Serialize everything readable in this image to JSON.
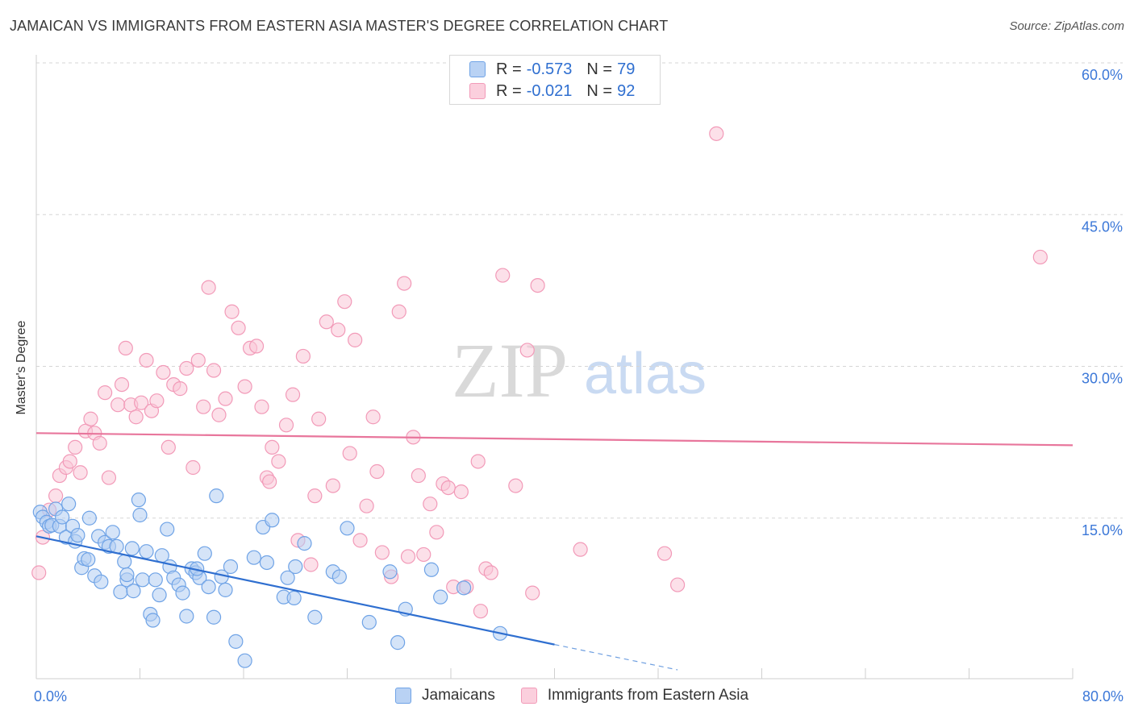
{
  "header": {
    "title": "JAMAICAN VS IMMIGRANTS FROM EASTERN ASIA MASTER'S DEGREE CORRELATION CHART",
    "source": "Source: ZipAtlas.com"
  },
  "watermark": {
    "zip": "ZIP",
    "atlas": "atlas"
  },
  "legend": {
    "r_label": "R =",
    "n_label": "N =",
    "entries": [
      {
        "r": "-0.573",
        "n": "79",
        "color": "#6fa3e6"
      },
      {
        "r": "-0.021",
        "n": "92",
        "color": "#f29ab8"
      }
    ]
  },
  "bottom_legend": {
    "items": [
      {
        "label": "Jamaicans",
        "color": "#6fa3e6"
      },
      {
        "label": "Immigrants from Eastern Asia",
        "color": "#f29ab8"
      }
    ]
  },
  "chart_data": {
    "type": "scatter",
    "title": "JAMAICAN VS IMMIGRANTS FROM EASTERN ASIA MASTER'S DEGREE CORRELATION CHART",
    "xlabel": "",
    "ylabel": "Master's Degree",
    "xlim": [
      0,
      80
    ],
    "ylim": [
      0,
      60
    ],
    "x_tick_labels": [
      "0.0%",
      "80.0%"
    ],
    "y_ticks": [
      15,
      30,
      45,
      60
    ],
    "y_tick_labels": [
      "15.0%",
      "30.0%",
      "45.0%",
      "60.0%"
    ],
    "grid": true,
    "legend_position": "top-center",
    "series": [
      {
        "name": "Jamaicans",
        "color": "#6fa3e6",
        "trend": {
          "x": [
            0,
            40
          ],
          "y": [
            13.2,
            2.5
          ],
          "dashed_to": [
            49.5,
            0
          ]
        },
        "points": [
          [
            0.3,
            15.6
          ],
          [
            0.5,
            15.1
          ],
          [
            0.8,
            14.6
          ],
          [
            1.0,
            14.2
          ],
          [
            1.5,
            15.9
          ],
          [
            1.2,
            14.3
          ],
          [
            1.8,
            14.2
          ],
          [
            2.0,
            15.1
          ],
          [
            2.3,
            13.1
          ],
          [
            2.5,
            16.4
          ],
          [
            2.8,
            14.2
          ],
          [
            3.0,
            12.7
          ],
          [
            3.2,
            13.3
          ],
          [
            3.5,
            10.1
          ],
          [
            3.7,
            11.0
          ],
          [
            4.1,
            15.0
          ],
          [
            4.0,
            10.9
          ],
          [
            4.5,
            9.3
          ],
          [
            4.8,
            13.2
          ],
          [
            5.0,
            8.7
          ],
          [
            5.3,
            12.6
          ],
          [
            5.6,
            12.2
          ],
          [
            5.9,
            13.6
          ],
          [
            6.2,
            12.2
          ],
          [
            6.5,
            7.7
          ],
          [
            6.8,
            10.7
          ],
          [
            7.0,
            8.9
          ],
          [
            7.4,
            12.0
          ],
          [
            7.5,
            7.8
          ],
          [
            7.9,
            16.8
          ],
          [
            8.0,
            15.3
          ],
          [
            8.2,
            8.9
          ],
          [
            8.5,
            11.7
          ],
          [
            8.8,
            5.5
          ],
          [
            9.0,
            4.9
          ],
          [
            9.2,
            8.9
          ],
          [
            9.5,
            7.4
          ],
          [
            9.7,
            11.3
          ],
          [
            10.1,
            13.9
          ],
          [
            10.3,
            10.2
          ],
          [
            10.6,
            9.1
          ],
          [
            11.0,
            8.4
          ],
          [
            11.3,
            7.6
          ],
          [
            11.6,
            5.3
          ],
          [
            12.0,
            10.0
          ],
          [
            12.3,
            9.6
          ],
          [
            12.6,
            9.1
          ],
          [
            13.0,
            11.5
          ],
          [
            13.3,
            8.2
          ],
          [
            13.7,
            5.2
          ],
          [
            13.9,
            17.2
          ],
          [
            14.3,
            9.2
          ],
          [
            14.6,
            7.9
          ],
          [
            15.0,
            10.2
          ],
          [
            15.4,
            2.8
          ],
          [
            16.1,
            0.9
          ],
          [
            16.8,
            11.1
          ],
          [
            17.5,
            14.1
          ],
          [
            17.8,
            10.6
          ],
          [
            18.2,
            14.8
          ],
          [
            19.1,
            7.2
          ],
          [
            19.9,
            7.1
          ],
          [
            20.7,
            12.5
          ],
          [
            21.5,
            5.2
          ],
          [
            22.9,
            9.7
          ],
          [
            23.4,
            9.2
          ],
          [
            24.0,
            14.0
          ],
          [
            25.7,
            4.7
          ],
          [
            27.3,
            9.7
          ],
          [
            27.9,
            2.7
          ],
          [
            28.5,
            6.0
          ],
          [
            30.5,
            9.9
          ],
          [
            31.2,
            7.2
          ],
          [
            33.0,
            8.1
          ],
          [
            35.8,
            3.6
          ],
          [
            19.4,
            9.1
          ],
          [
            20.0,
            10.2
          ],
          [
            12.4,
            10.0
          ],
          [
            7.0,
            9.4
          ]
        ]
      },
      {
        "name": "Immigrants from Eastern Asia",
        "color": "#f29ab8",
        "trend": {
          "x": [
            0,
            80
          ],
          "y": [
            23.4,
            22.2
          ]
        },
        "points": [
          [
            0.2,
            9.6
          ],
          [
            0.5,
            13.1
          ],
          [
            1.0,
            15.8
          ],
          [
            1.5,
            17.2
          ],
          [
            1.8,
            19.2
          ],
          [
            2.3,
            20.0
          ],
          [
            2.6,
            20.6
          ],
          [
            3.0,
            22.0
          ],
          [
            3.4,
            19.5
          ],
          [
            3.8,
            23.6
          ],
          [
            4.2,
            24.8
          ],
          [
            4.5,
            23.4
          ],
          [
            4.9,
            22.4
          ],
          [
            5.3,
            27.4
          ],
          [
            5.6,
            19.0
          ],
          [
            6.3,
            26.2
          ],
          [
            6.6,
            28.2
          ],
          [
            6.9,
            31.8
          ],
          [
            7.3,
            26.2
          ],
          [
            7.7,
            25.0
          ],
          [
            8.1,
            26.4
          ],
          [
            8.5,
            30.6
          ],
          [
            8.9,
            25.6
          ],
          [
            9.3,
            26.6
          ],
          [
            9.8,
            29.4
          ],
          [
            10.2,
            22.0
          ],
          [
            10.6,
            28.2
          ],
          [
            11.1,
            27.8
          ],
          [
            11.6,
            29.8
          ],
          [
            12.1,
            20.0
          ],
          [
            12.5,
            30.6
          ],
          [
            12.9,
            26.0
          ],
          [
            13.3,
            37.8
          ],
          [
            13.7,
            29.6
          ],
          [
            14.1,
            25.2
          ],
          [
            14.6,
            26.8
          ],
          [
            15.1,
            35.4
          ],
          [
            15.6,
            33.8
          ],
          [
            16.1,
            28.0
          ],
          [
            16.5,
            31.8
          ],
          [
            17.0,
            32.0
          ],
          [
            17.4,
            26.0
          ],
          [
            17.8,
            19.0
          ],
          [
            18.2,
            22.0
          ],
          [
            18.7,
            20.6
          ],
          [
            19.3,
            24.2
          ],
          [
            19.8,
            27.2
          ],
          [
            20.2,
            12.8
          ],
          [
            20.6,
            31.0
          ],
          [
            21.2,
            10.4
          ],
          [
            21.5,
            17.2
          ],
          [
            21.8,
            24.8
          ],
          [
            22.4,
            34.4
          ],
          [
            22.9,
            18.2
          ],
          [
            23.3,
            33.6
          ],
          [
            23.8,
            36.4
          ],
          [
            24.2,
            21.4
          ],
          [
            24.6,
            32.6
          ],
          [
            25.0,
            12.8
          ],
          [
            25.5,
            16.2
          ],
          [
            26.0,
            25.0
          ],
          [
            26.3,
            19.6
          ],
          [
            26.7,
            11.6
          ],
          [
            27.4,
            9.2
          ],
          [
            28.0,
            35.4
          ],
          [
            28.4,
            38.2
          ],
          [
            28.7,
            11.2
          ],
          [
            29.1,
            23.0
          ],
          [
            29.5,
            19.2
          ],
          [
            29.9,
            11.4
          ],
          [
            30.4,
            16.4
          ],
          [
            30.9,
            13.6
          ],
          [
            31.4,
            18.4
          ],
          [
            31.8,
            18.0
          ],
          [
            32.2,
            8.2
          ],
          [
            32.8,
            17.6
          ],
          [
            33.2,
            8.2
          ],
          [
            34.1,
            20.6
          ],
          [
            34.3,
            5.8
          ],
          [
            34.7,
            10.0
          ],
          [
            35.1,
            9.6
          ],
          [
            36.0,
            39.0
          ],
          [
            37.0,
            18.2
          ],
          [
            37.9,
            31.6
          ],
          [
            38.3,
            7.6
          ],
          [
            38.7,
            38.0
          ],
          [
            42.0,
            11.9
          ],
          [
            48.5,
            11.5
          ],
          [
            49.5,
            8.4
          ],
          [
            52.5,
            53.0
          ],
          [
            77.5,
            40.8
          ],
          [
            18.0,
            18.6
          ]
        ]
      }
    ]
  }
}
